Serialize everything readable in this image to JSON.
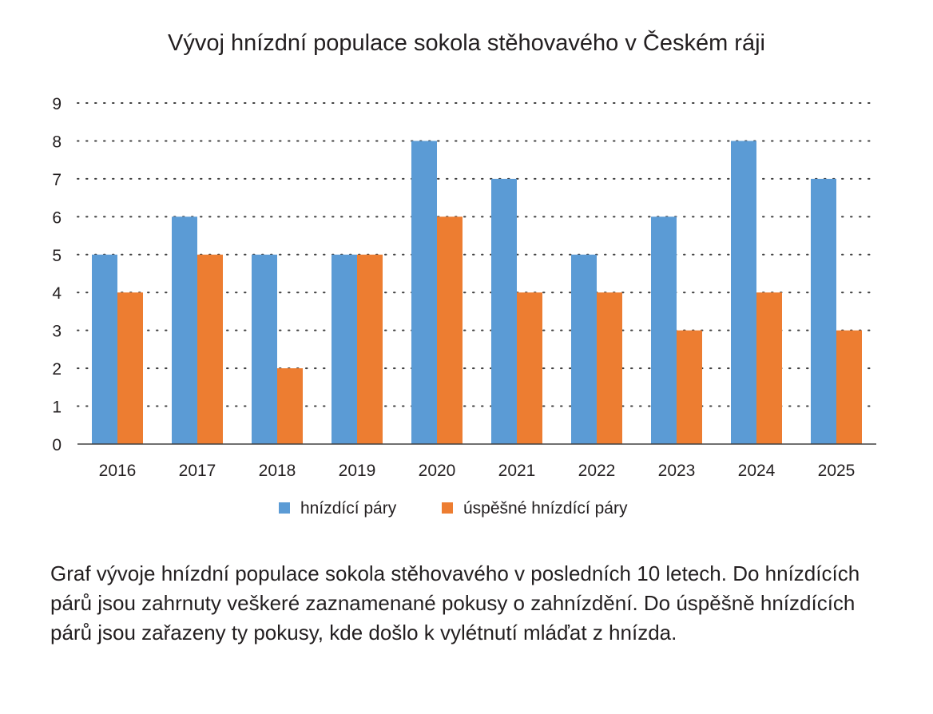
{
  "chart_data": {
    "type": "bar",
    "title": "Vývoj hnízdní populace sokola stěhovavého v Českém ráji",
    "categories": [
      "2016",
      "2017",
      "2018",
      "2019",
      "2020",
      "2021",
      "2022",
      "2023",
      "2024",
      "2025"
    ],
    "series": [
      {
        "name": "hnízdící páry",
        "color": "#5b9bd5",
        "values": [
          5,
          6,
          5,
          5,
          8,
          7,
          5,
          6,
          8,
          7
        ]
      },
      {
        "name": "úspěšné hnízdící páry",
        "color": "#ed7d31",
        "values": [
          4,
          5,
          2,
          5,
          6,
          4,
          4,
          3,
          4,
          3
        ]
      }
    ],
    "ylim": [
      0,
      9
    ],
    "yticks": [
      "0",
      "1",
      "2",
      "3",
      "4",
      "5",
      "6",
      "7",
      "8",
      "9"
    ],
    "grid": true,
    "legend_position": "bottom"
  },
  "caption": "Graf vývoje hnízdní populace sokola stěhovavého v posledních 10 letech. Do hnízdících párů jsou zahrnuty veškeré zaznamenané pokusy o zahnízdění. Do úspěšně hnízdících párů jsou zařazeny ty pokusy, kde došlo k vylétnutí mláďat z hnízda."
}
